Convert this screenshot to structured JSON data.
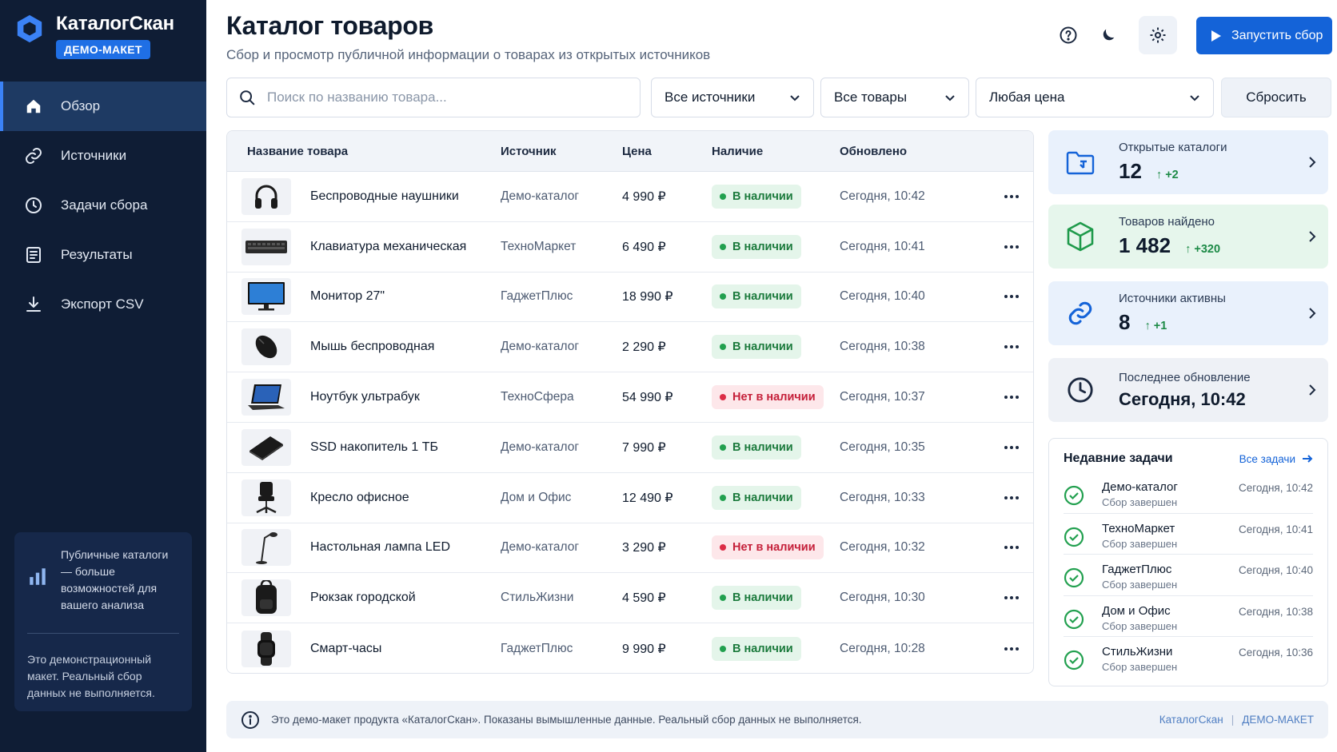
{
  "app": {
    "name": "КаталогСкан",
    "badge": "ДЕМО-МАКЕТ"
  },
  "sidebar": {
    "items": [
      {
        "label": "Обзор",
        "icon": "home-icon",
        "active": true
      },
      {
        "label": "Источники",
        "icon": "link-icon",
        "active": false
      },
      {
        "label": "Задачи сбора",
        "icon": "clock-icon",
        "active": false
      },
      {
        "label": "Результаты",
        "icon": "list-icon",
        "active": false
      },
      {
        "label": "Экспорт CSV",
        "icon": "download-icon",
        "active": false
      }
    ],
    "promo": {
      "title": "Публичные каталоги — больше возможностей для вашего анализа",
      "note": "Это демонстрационный макет. Реальный сбор данных не выполняется."
    }
  },
  "header": {
    "title": "Каталог товаров",
    "subtitle": "Сбор и просмотр публичной информации о товарах из открытых источников",
    "run_label": "Запустить сбор"
  },
  "filters": {
    "search_placeholder": "Поиск по названию товара...",
    "source": "Все источники",
    "products": "Все товары",
    "price": "Любая цена",
    "reset_label": "Сбросить"
  },
  "table": {
    "columns": {
      "name": "Название товара",
      "source": "Источник",
      "price": "Цена",
      "stock": "Наличие",
      "updated": "Обновлено"
    },
    "rows": [
      {
        "name": "Беспроводные наушники",
        "source": "Демо-каталог",
        "price": "4 990 ₽",
        "stock": "В наличии",
        "in_stock": true,
        "updated": "Сегодня, 10:42",
        "thumb": "headphones"
      },
      {
        "name": "Клавиатура механическая",
        "source": "ТехноМаркет",
        "price": "6 490 ₽",
        "stock": "В наличии",
        "in_stock": true,
        "updated": "Сегодня, 10:41",
        "thumb": "keyboard"
      },
      {
        "name": "Монитор 27\"",
        "source": "ГаджетПлюс",
        "price": "18 990 ₽",
        "stock": "В наличии",
        "in_stock": true,
        "updated": "Сегодня, 10:40",
        "thumb": "monitor"
      },
      {
        "name": "Мышь беспроводная",
        "source": "Демо-каталог",
        "price": "2 290 ₽",
        "stock": "В наличии",
        "in_stock": true,
        "updated": "Сегодня, 10:38",
        "thumb": "mouse"
      },
      {
        "name": "Ноутбук ультрабук",
        "source": "ТехноСфера",
        "price": "54 990 ₽",
        "stock": "Нет в наличии",
        "in_stock": false,
        "updated": "Сегодня, 10:37",
        "thumb": "laptop"
      },
      {
        "name": "SSD накопитель 1 ТБ",
        "source": "Демо-каталог",
        "price": "7 990 ₽",
        "stock": "В наличии",
        "in_stock": true,
        "updated": "Сегодня, 10:35",
        "thumb": "ssd"
      },
      {
        "name": "Кресло офисное",
        "source": "Дом и Офис",
        "price": "12 490 ₽",
        "stock": "В наличии",
        "in_stock": true,
        "updated": "Сегодня, 10:33",
        "thumb": "chair"
      },
      {
        "name": "Настольная лампа LED",
        "source": "Демо-каталог",
        "price": "3 290 ₽",
        "stock": "Нет в наличии",
        "in_stock": false,
        "updated": "Сегодня, 10:32",
        "thumb": "lamp"
      },
      {
        "name": "Рюкзак городской",
        "source": "СтильЖизни",
        "price": "4 590 ₽",
        "stock": "В наличии",
        "in_stock": true,
        "updated": "Сегодня, 10:30",
        "thumb": "backpack"
      },
      {
        "name": "Смарт-часы",
        "source": "ГаджетПлюс",
        "price": "9 990 ₽",
        "stock": "В наличии",
        "in_stock": true,
        "updated": "Сегодня, 10:28",
        "thumb": "watch"
      }
    ]
  },
  "stats": [
    {
      "label": "Открытые каталоги",
      "value": "12",
      "delta": "+2",
      "icon": "folder-icon",
      "tone": "blue"
    },
    {
      "label": "Товаров найдено",
      "value": "1 482",
      "delta": "+320",
      "icon": "cube-icon",
      "tone": "green"
    },
    {
      "label": "Источники активны",
      "value": "8",
      "delta": "+1",
      "icon": "link-icon",
      "tone": "blue"
    },
    {
      "label": "Последнее обновление",
      "value": "Сегодня, 10:42",
      "delta": "",
      "icon": "clock-icon",
      "tone": "gray"
    }
  ],
  "tasks": {
    "title": "Недавние задачи",
    "link": "Все задачи",
    "items": [
      {
        "name": "Демо-каталог",
        "status": "Сбор завершен",
        "time": "Сегодня, 10:42"
      },
      {
        "name": "ТехноМаркет",
        "status": "Сбор завершен",
        "time": "Сегодня, 10:41"
      },
      {
        "name": "ГаджетПлюс",
        "status": "Сбор завершен",
        "time": "Сегодня, 10:40"
      },
      {
        "name": "Дом и Офис",
        "status": "Сбор завершен",
        "time": "Сегодня, 10:38"
      },
      {
        "name": "СтильЖизни",
        "status": "Сбор завершен",
        "time": "Сегодня, 10:36"
      }
    ]
  },
  "footer": {
    "text": "Это демо-макет продукта «КаталогСкан». Показаны вымышленные данные. Реальный сбор данных не выполняется.",
    "brand": "КаталогСкан",
    "badge": "ДЕМО-МАКЕТ"
  },
  "colors": {
    "sidebar_bg": "#0f1d35",
    "accent": "#1463d8",
    "in_stock": "#22a04f",
    "out_of_stock": "#dc2d46"
  }
}
